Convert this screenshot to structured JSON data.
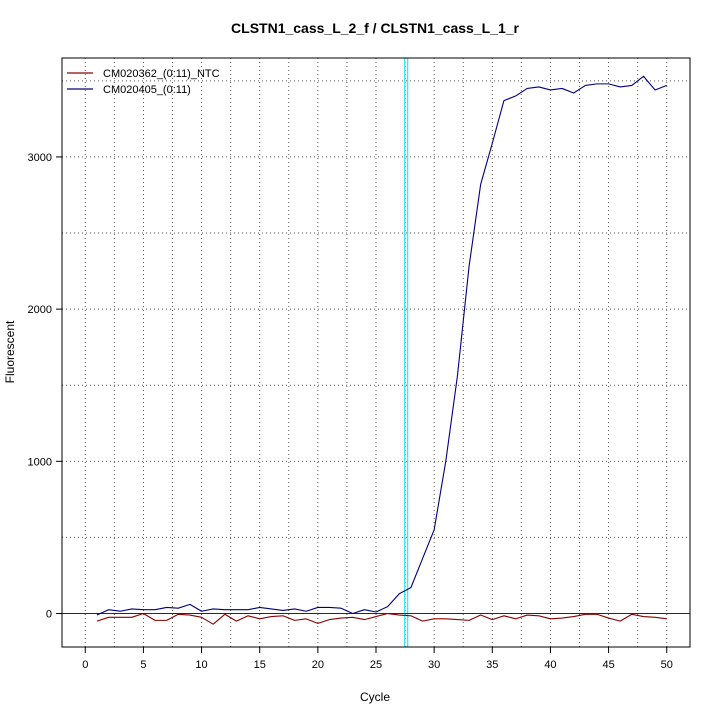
{
  "chart_data": {
    "type": "line",
    "title": "CLSTN1_cass_L_2_f / CLSTN1_cass_L_1_r",
    "xlabel": "Cycle",
    "ylabel": "Fluorescent",
    "xlim": [
      -2,
      52
    ],
    "ylim": [
      -220,
      3650
    ],
    "x_ticks": [
      0,
      5,
      10,
      15,
      20,
      25,
      30,
      35,
      40,
      45,
      50
    ],
    "y_ticks": [
      0,
      1000,
      2000,
      3000
    ],
    "grid": true,
    "threshold_cycle": 27.6,
    "baseline_value": 0,
    "legend_position": "top-left",
    "series": [
      {
        "name": "CM020362_(0:11)_NTC",
        "color": "#8b0000",
        "x": [
          1,
          2,
          3,
          4,
          5,
          6,
          7,
          8,
          9,
          10,
          11,
          12,
          13,
          14,
          15,
          16,
          17,
          18,
          19,
          20,
          21,
          22,
          23,
          24,
          25,
          26,
          27,
          28,
          29,
          30,
          31,
          32,
          33,
          34,
          35,
          36,
          37,
          38,
          39,
          40,
          41,
          42,
          43,
          44,
          45,
          46,
          47,
          48,
          49,
          50
        ],
        "values": [
          -50,
          -25,
          -25,
          -25,
          0,
          -45,
          -45,
          -5,
          -10,
          -25,
          -70,
          -5,
          -50,
          -15,
          -35,
          -20,
          -15,
          -45,
          -35,
          -65,
          -40,
          -30,
          -25,
          -40,
          -20,
          0,
          -10,
          -15,
          -50,
          -35,
          -35,
          -40,
          -45,
          -10,
          -40,
          -15,
          -35,
          -10,
          -15,
          -35,
          -30,
          -20,
          -5,
          -5,
          -30,
          -50,
          -5,
          -20,
          -25,
          -35
        ]
      },
      {
        "name": "CM020405_(0:11)",
        "color": "#00007f",
        "x": [
          1,
          2,
          3,
          4,
          5,
          6,
          7,
          8,
          9,
          10,
          11,
          12,
          13,
          14,
          15,
          16,
          17,
          18,
          19,
          20,
          21,
          22,
          23,
          24,
          25,
          26,
          27,
          28,
          29,
          30,
          31,
          32,
          33,
          34,
          35,
          36,
          37,
          38,
          39,
          40,
          41,
          42,
          43,
          44,
          45,
          46,
          47,
          48,
          49,
          50
        ],
        "values": [
          -10,
          25,
          15,
          30,
          25,
          25,
          40,
          35,
          60,
          15,
          30,
          25,
          25,
          25,
          40,
          30,
          20,
          30,
          15,
          40,
          40,
          35,
          0,
          25,
          10,
          45,
          130,
          170,
          360,
          550,
          1000,
          1560,
          2280,
          2820,
          3090,
          3370,
          3400,
          3450,
          3460,
          3440,
          3450,
          3420,
          3470,
          3480,
          3480,
          3460,
          3470,
          3530,
          3440,
          3470
        ]
      }
    ]
  }
}
